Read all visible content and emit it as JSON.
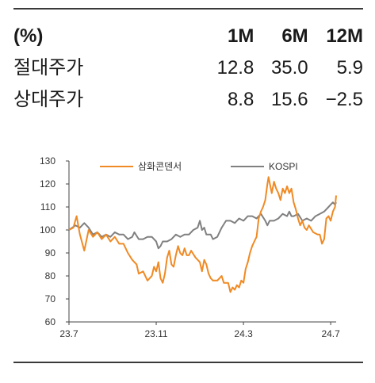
{
  "table": {
    "headers": [
      "(%)",
      "1M",
      "6M",
      "12M"
    ],
    "rows": [
      {
        "label": "절대주가",
        "values": [
          "12.8",
          "35.0",
          "5.9"
        ]
      },
      {
        "label": "상대주가",
        "values": [
          "8.8",
          "15.6",
          "−2.5"
        ]
      }
    ]
  },
  "chart_data": {
    "type": "line",
    "x_tick_labels": [
      "23.7",
      "23.11",
      "24.3",
      "24.7"
    ],
    "x_ticks_month_index": [
      0,
      4,
      8,
      12
    ],
    "ylim": [
      60,
      130
    ],
    "y_ticks": [
      60,
      70,
      80,
      90,
      100,
      110,
      120,
      130
    ],
    "legend_position": "top",
    "series": [
      {
        "name": "삼화콘덴서",
        "color": "#f08a24",
        "points": [
          [
            0,
            100
          ],
          [
            0.2,
            101
          ],
          [
            0.35,
            106
          ],
          [
            0.5,
            98
          ],
          [
            0.7,
            91
          ],
          [
            0.9,
            100
          ],
          [
            1.1,
            97
          ],
          [
            1.3,
            99
          ],
          [
            1.5,
            96
          ],
          [
            1.7,
            98
          ],
          [
            1.9,
            95
          ],
          [
            2.1,
            97
          ],
          [
            2.3,
            94
          ],
          [
            2.5,
            94
          ],
          [
            2.7,
            90
          ],
          [
            2.9,
            87
          ],
          [
            3.1,
            85
          ],
          [
            3.2,
            81
          ],
          [
            3.4,
            82
          ],
          [
            3.6,
            78
          ],
          [
            3.8,
            80
          ],
          [
            3.9,
            84
          ],
          [
            4.0,
            82
          ],
          [
            4.1,
            86
          ],
          [
            4.2,
            79
          ],
          [
            4.3,
            77
          ],
          [
            4.4,
            81
          ],
          [
            4.5,
            88
          ],
          [
            4.6,
            91
          ],
          [
            4.7,
            85
          ],
          [
            4.8,
            84
          ],
          [
            4.9,
            89
          ],
          [
            5.0,
            93
          ],
          [
            5.1,
            90
          ],
          [
            5.2,
            89
          ],
          [
            5.3,
            92
          ],
          [
            5.4,
            89
          ],
          [
            5.5,
            89
          ],
          [
            5.6,
            91
          ],
          [
            5.8,
            88
          ],
          [
            6.0,
            86
          ],
          [
            6.1,
            82
          ],
          [
            6.2,
            87
          ],
          [
            6.3,
            85
          ],
          [
            6.4,
            81
          ],
          [
            6.5,
            79
          ],
          [
            6.6,
            78
          ],
          [
            6.8,
            78
          ],
          [
            7.0,
            80
          ],
          [
            7.1,
            77
          ],
          [
            7.3,
            77
          ],
          [
            7.4,
            73
          ],
          [
            7.5,
            75
          ],
          [
            7.6,
            74
          ],
          [
            7.7,
            76
          ],
          [
            7.8,
            75
          ],
          [
            7.9,
            78
          ],
          [
            8.0,
            77
          ],
          [
            8.1,
            83
          ],
          [
            8.2,
            86
          ],
          [
            8.3,
            90
          ],
          [
            8.4,
            93
          ],
          [
            8.5,
            95
          ],
          [
            8.6,
            97
          ],
          [
            8.7,
            105
          ],
          [
            8.8,
            108
          ],
          [
            8.9,
            110
          ],
          [
            9.0,
            113
          ],
          [
            9.1,
            120
          ],
          [
            9.15,
            123
          ],
          [
            9.3,
            116
          ],
          [
            9.4,
            121
          ],
          [
            9.5,
            118
          ],
          [
            9.6,
            116
          ],
          [
            9.7,
            113
          ],
          [
            9.8,
            118
          ],
          [
            9.9,
            116
          ],
          [
            10.0,
            119
          ],
          [
            10.1,
            116
          ],
          [
            10.2,
            118
          ],
          [
            10.3,
            112
          ],
          [
            10.4,
            109
          ],
          [
            10.5,
            105
          ],
          [
            10.6,
            102
          ],
          [
            10.7,
            104
          ],
          [
            10.8,
            101
          ],
          [
            10.9,
            100
          ],
          [
            11.0,
            102
          ],
          [
            11.2,
            99
          ],
          [
            11.4,
            98
          ],
          [
            11.5,
            98
          ],
          [
            11.6,
            94
          ],
          [
            11.7,
            96
          ],
          [
            11.8,
            105
          ],
          [
            11.9,
            106
          ],
          [
            12.0,
            104
          ],
          [
            12.1,
            108
          ],
          [
            12.2,
            110
          ],
          [
            12.25,
            115
          ]
        ]
      },
      {
        "name": "KOSPI",
        "color": "#808080",
        "points": [
          [
            0,
            100
          ],
          [
            0.3,
            102
          ],
          [
            0.5,
            101
          ],
          [
            0.7,
            103
          ],
          [
            0.9,
            101
          ],
          [
            1.1,
            98
          ],
          [
            1.3,
            99
          ],
          [
            1.5,
            97
          ],
          [
            1.7,
            98
          ],
          [
            1.9,
            97
          ],
          [
            2.1,
            99
          ],
          [
            2.3,
            98
          ],
          [
            2.5,
            98
          ],
          [
            2.7,
            96
          ],
          [
            2.9,
            97
          ],
          [
            3.0,
            99
          ],
          [
            3.2,
            96
          ],
          [
            3.4,
            96
          ],
          [
            3.6,
            97
          ],
          [
            3.8,
            97
          ],
          [
            4.0,
            95
          ],
          [
            4.1,
            92
          ],
          [
            4.2,
            93
          ],
          [
            4.3,
            95
          ],
          [
            4.5,
            95
          ],
          [
            4.7,
            96
          ],
          [
            4.9,
            98
          ],
          [
            5.1,
            97
          ],
          [
            5.3,
            98
          ],
          [
            5.5,
            98
          ],
          [
            5.7,
            100
          ],
          [
            5.9,
            101
          ],
          [
            6.0,
            104
          ],
          [
            6.1,
            100
          ],
          [
            6.2,
            101
          ],
          [
            6.3,
            98
          ],
          [
            6.5,
            98
          ],
          [
            6.6,
            96
          ],
          [
            6.8,
            97
          ],
          [
            7.0,
            101
          ],
          [
            7.2,
            104
          ],
          [
            7.4,
            104
          ],
          [
            7.6,
            103
          ],
          [
            7.8,
            105
          ],
          [
            8.0,
            104
          ],
          [
            8.2,
            106
          ],
          [
            8.4,
            106
          ],
          [
            8.6,
            105
          ],
          [
            8.8,
            107
          ],
          [
            9.0,
            104
          ],
          [
            9.1,
            102
          ],
          [
            9.2,
            104
          ],
          [
            9.4,
            104
          ],
          [
            9.6,
            105
          ],
          [
            9.8,
            107
          ],
          [
            10.0,
            106
          ],
          [
            10.1,
            108
          ],
          [
            10.2,
            106
          ],
          [
            10.3,
            106
          ],
          [
            10.5,
            107
          ],
          [
            10.7,
            104
          ],
          [
            10.9,
            105
          ],
          [
            11.1,
            104
          ],
          [
            11.3,
            106
          ],
          [
            11.5,
            107
          ],
          [
            11.7,
            108
          ],
          [
            11.9,
            110
          ],
          [
            12.0,
            111
          ],
          [
            12.1,
            112
          ],
          [
            12.2,
            111
          ],
          [
            12.25,
            112
          ]
        ]
      }
    ]
  }
}
